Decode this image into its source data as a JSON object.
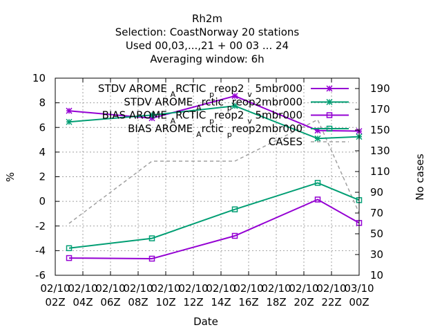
{
  "chart_data": {
    "type": "line",
    "title_lines": [
      "Rh2m",
      "Selection: CoastNorway     20 stations",
      "Used  00,03,...,21  + 00 03 ... 24",
      "Averaging window:  6h"
    ],
    "xlabel": "Date",
    "ylabel": "%",
    "y2label": "No cases",
    "x_ticks_top": [
      "02/10",
      "02/10",
      "02/10",
      "02/10",
      "02/10",
      "02/10",
      "02/10",
      "02/10",
      "02/10",
      "02/10",
      "02/10",
      "03/10"
    ],
    "x_ticks_bottom": [
      "02Z",
      "04Z",
      "06Z",
      "08Z",
      "10Z",
      "12Z",
      "14Z",
      "16Z",
      "18Z",
      "20Z",
      "22Z",
      "00Z"
    ],
    "xlim_hours": [
      2,
      24
    ],
    "ylim": [
      -6,
      10
    ],
    "y_ticks": [
      "-6",
      "-4",
      "-2",
      "0",
      "2",
      "4",
      "6",
      "8",
      "10"
    ],
    "y2lim": [
      10,
      200
    ],
    "y2_ticks": [
      "10",
      "30",
      "50",
      "70",
      "90",
      "110",
      "130",
      "150",
      "170",
      "190"
    ],
    "grid": true,
    "legend_position": "top-right",
    "colors": {
      "purple": "#9400d3",
      "green": "#009e73",
      "gray": "#a0a0a0"
    },
    "series": [
      {
        "label_main": "STDV AROME",
        "label_sub1": "A",
        "label_mid": "RCTIC",
        "label_sub2": "p",
        "label_mid2": "reop2",
        "label_sub3": "v",
        "label_end": "5mbr000",
        "color": "#9400d3",
        "marker": "star",
        "axis": "y1",
        "x": [
          3,
          9,
          15,
          21,
          24
        ],
        "y": [
          7.35,
          6.75,
          8.55,
          5.75,
          5.7
        ]
      },
      {
        "label_main": "STDV AROME",
        "label_sub1": "A",
        "label_mid": "rctic",
        "label_sub2": "p",
        "label_mid2": "reop2mbr000",
        "label_sub3": "",
        "label_end": "",
        "color": "#009e73",
        "marker": "star",
        "axis": "y1",
        "x": [
          3,
          9,
          15,
          21,
          24
        ],
        "y": [
          6.45,
          7.0,
          7.75,
          5.1,
          5.25
        ]
      },
      {
        "label_main": "BIAS AROME",
        "label_sub1": "A",
        "label_mid": "RCTIC",
        "label_sub2": "p",
        "label_mid2": "reop2",
        "label_sub3": "v",
        "label_end": "5mbr000",
        "color": "#9400d3",
        "marker": "square",
        "axis": "y1",
        "x": [
          3,
          9,
          15,
          21,
          24
        ],
        "y": [
          -4.6,
          -4.65,
          -2.8,
          0.15,
          -1.75
        ]
      },
      {
        "label_main": "BIAS AROME",
        "label_sub1": "A",
        "label_mid": "rctic",
        "label_sub2": "p",
        "label_mid2": "reop2mbr000",
        "label_sub3": "",
        "label_end": "",
        "color": "#009e73",
        "marker": "square",
        "axis": "y1",
        "x": [
          3,
          9,
          15,
          21,
          24
        ],
        "y": [
          -3.8,
          -3.0,
          -0.65,
          1.5,
          0.1
        ]
      },
      {
        "label_main": "CASES",
        "label_sub1": "",
        "label_mid": "",
        "label_sub2": "",
        "label_mid2": "",
        "label_sub3": "",
        "label_end": "",
        "color": "#a0a0a0",
        "marker": "none",
        "dashed": true,
        "axis": "y2",
        "x": [
          3,
          9,
          15,
          21,
          24
        ],
        "y": [
          60,
          120,
          120,
          160,
          70
        ]
      }
    ]
  }
}
